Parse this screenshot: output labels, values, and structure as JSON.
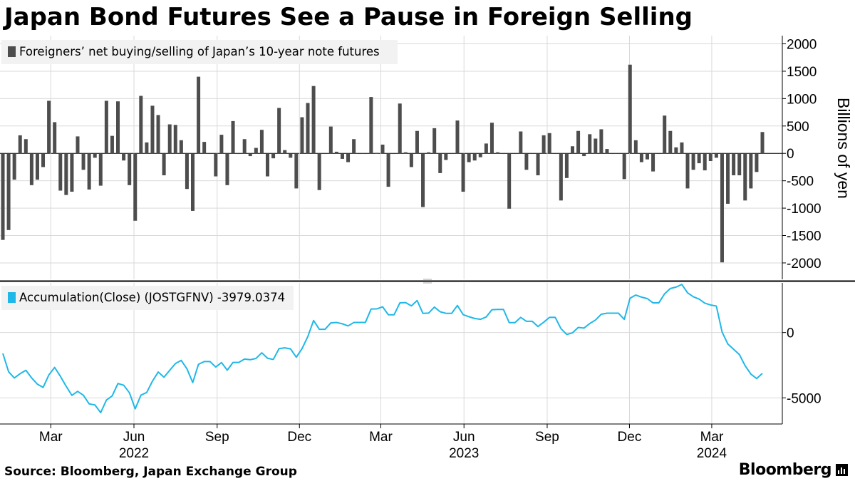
{
  "title": "Japan Bond Futures See a Pause in Foreign Selling",
  "source": "Source: Bloomberg, Japan Exchange Group",
  "brand": "Bloomberg",
  "brand_icon": "bar-chart-icon",
  "colors": {
    "bars": "#4d4d4d",
    "line": "#1fb8e8",
    "grid": "#d9d9d9",
    "legend_bg": "#f2f2f2"
  },
  "chart_data": [
    {
      "type": "bar",
      "legend": "Foreigners’ net buying/selling of Japan’s 10-year note futures",
      "ylabel": "Billions of yen",
      "yticks": [
        2000,
        1500,
        1000,
        500,
        0,
        -500,
        -1000,
        -1500,
        -2000
      ],
      "ylim": [
        -2300,
        2150
      ],
      "grid": true,
      "legend_position": "top-left",
      "x_start": "2022-01-07",
      "x_end": "2024-04-26",
      "values": [
        -1580,
        -1400,
        -480,
        330,
        260,
        -580,
        -480,
        -250,
        960,
        570,
        -680,
        -760,
        -700,
        310,
        -300,
        -660,
        -80,
        -590,
        960,
        320,
        950,
        -130,
        -580,
        -1230,
        1050,
        200,
        870,
        700,
        -400,
        530,
        520,
        240,
        -650,
        -1050,
        1400,
        210,
        0,
        -420,
        340,
        -580,
        590,
        0,
        260,
        -50,
        100,
        430,
        -420,
        -90,
        830,
        60,
        -80,
        -640,
        660,
        920,
        1230,
        -670,
        0,
        490,
        30,
        -100,
        -160,
        260,
        0,
        0,
        1030,
        10,
        160,
        -610,
        0,
        910,
        20,
        -250,
        410,
        -980,
        20,
        460,
        -360,
        -120,
        0,
        600,
        -700,
        -160,
        -130,
        -70,
        180,
        560,
        20,
        0,
        -1010,
        0,
        400,
        -300,
        0,
        -400,
        330,
        370,
        0,
        -860,
        -450,
        130,
        410,
        -50,
        350,
        270,
        440,
        80,
        0,
        0,
        -470,
        1620,
        240,
        -160,
        -110,
        -330,
        0,
        690,
        410,
        110,
        200,
        -640,
        -300,
        -180,
        -310,
        -140,
        -80,
        -1990,
        -920,
        -400,
        -400,
        -860,
        -640,
        -340,
        390
      ]
    },
    {
      "type": "line",
      "legend": "Accumulation(Close) (JOSTGFNV) -3979.0374",
      "yticks": [
        0,
        -5000
      ],
      "ylim": [
        -7000,
        3800
      ],
      "grid": true,
      "legend_position": "top-left",
      "x_start": "2022-01-07",
      "x_end": "2024-04-26",
      "x_axis_labels": {
        "months": [
          {
            "label": "Mar",
            "date": "2022-03-01"
          },
          {
            "label": "Jun",
            "date": "2022-06-01"
          },
          {
            "label": "Sep",
            "date": "2022-09-01"
          },
          {
            "label": "Dec",
            "date": "2022-12-01"
          },
          {
            "label": "Mar",
            "date": "2023-03-01"
          },
          {
            "label": "Jun",
            "date": "2023-06-01"
          },
          {
            "label": "Sep",
            "date": "2023-09-01"
          },
          {
            "label": "Dec",
            "date": "2023-12-01"
          },
          {
            "label": "Mar",
            "date": "2024-03-01"
          }
        ],
        "years": [
          {
            "label": "2022",
            "date": "2022-06-01"
          },
          {
            "label": "2023",
            "date": "2023-06-01"
          },
          {
            "label": "2024",
            "date": "2024-03-01"
          }
        ]
      }
    }
  ]
}
